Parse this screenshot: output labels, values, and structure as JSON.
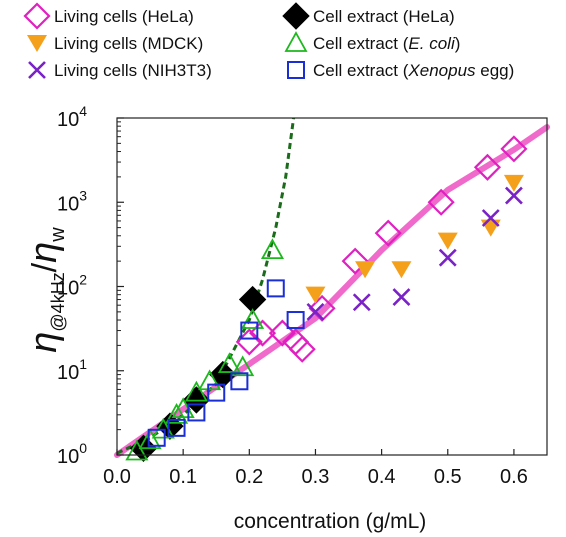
{
  "chart_data": {
    "type": "scatter",
    "xlabel": "concentration (g/mL)",
    "ylabel": "η@4kHz/ηw",
    "ylabel_parts": {
      "eta": "η",
      "sub": "@4kHz",
      "slash": "/",
      "w": "w"
    },
    "x_scale": "linear",
    "y_scale": "log",
    "xlim": [
      0.0,
      0.65
    ],
    "ylim": [
      1,
      10000
    ],
    "x_ticks": [
      {
        "value": 0.0,
        "label": "0.0"
      },
      {
        "value": 0.1,
        "label": "0.1"
      },
      {
        "value": 0.2,
        "label": "0.2"
      },
      {
        "value": 0.3,
        "label": "0.3"
      },
      {
        "value": 0.4,
        "label": "0.4"
      },
      {
        "value": 0.5,
        "label": "0.5"
      },
      {
        "value": 0.6,
        "label": "0.6"
      }
    ],
    "y_ticks": [
      {
        "value": 1,
        "base": "10",
        "exp": "0"
      },
      {
        "value": 10,
        "base": "10",
        "exp": "1"
      },
      {
        "value": 100,
        "base": "10",
        "exp": "2"
      },
      {
        "value": 1000,
        "base": "10",
        "exp": "3"
      },
      {
        "value": 10000,
        "base": "10",
        "exp": "4"
      }
    ],
    "grid": false,
    "legend_position": "top",
    "series": [
      {
        "name": "Living cells (HeLa)",
        "marker": "diamond-open",
        "color": "#e020c0",
        "legend_parts": [
          "Living cells (HeLa)"
        ],
        "points": [
          [
            0.2,
            22
          ],
          [
            0.22,
            28
          ],
          [
            0.25,
            28
          ],
          [
            0.27,
            22
          ],
          [
            0.28,
            18
          ],
          [
            0.31,
            55
          ],
          [
            0.36,
            200
          ],
          [
            0.41,
            430
          ],
          [
            0.49,
            1000
          ],
          [
            0.56,
            2600
          ],
          [
            0.6,
            4300
          ]
        ]
      },
      {
        "name": "Living cells (MDCK)",
        "marker": "triangle-down",
        "color": "#f5a01a",
        "legend_parts": [
          "Living cells (MDCK)"
        ],
        "points": [
          [
            0.3,
            80
          ],
          [
            0.375,
            160
          ],
          [
            0.43,
            160
          ],
          [
            0.5,
            350
          ],
          [
            0.565,
            500
          ],
          [
            0.6,
            1700
          ]
        ]
      },
      {
        "name": "Living cells (NIH3T3)",
        "marker": "x",
        "color": "#7a22c8",
        "legend_parts": [
          "Living cells (NIH3T3)"
        ],
        "points": [
          [
            0.3,
            50
          ],
          [
            0.37,
            65
          ],
          [
            0.43,
            75
          ],
          [
            0.5,
            220
          ],
          [
            0.565,
            650
          ],
          [
            0.6,
            1200
          ]
        ]
      },
      {
        "name": "Cell extract (HeLa)",
        "marker": "diamond-filled",
        "color": "#000000",
        "legend_parts": [
          "Cell extract (HeLa)"
        ],
        "points": [
          [
            0.04,
            1.2
          ],
          [
            0.08,
            2.2
          ],
          [
            0.12,
            4.5
          ],
          [
            0.16,
            9
          ],
          [
            0.205,
            70
          ]
        ]
      },
      {
        "name": "Cell extract (E. coli)",
        "marker": "triangle-up-open",
        "color": "#1db81d",
        "legend_parts": [
          "Cell extract (",
          "E. coli",
          ")"
        ],
        "points": [
          [
            0.03,
            1.1
          ],
          [
            0.05,
            1.5
          ],
          [
            0.07,
            2.0
          ],
          [
            0.09,
            3.0
          ],
          [
            0.1,
            3.5
          ],
          [
            0.12,
            5.5
          ],
          [
            0.14,
            7.5
          ],
          [
            0.17,
            12
          ],
          [
            0.19,
            11
          ],
          [
            0.205,
            40
          ],
          [
            0.235,
            270
          ]
        ]
      },
      {
        "name": "Cell extract (Xenopus egg)",
        "marker": "square-open",
        "color": "#1a2ed6",
        "legend_parts": [
          "Cell extract (",
          "Xenopus",
          " egg)"
        ],
        "points": [
          [
            0.06,
            1.6
          ],
          [
            0.09,
            2.1
          ],
          [
            0.12,
            3.2
          ],
          [
            0.15,
            5.5
          ],
          [
            0.185,
            7.5
          ],
          [
            0.2,
            30
          ],
          [
            0.24,
            95
          ],
          [
            0.27,
            40
          ]
        ]
      }
    ],
    "fit_lines": [
      {
        "style": "solid",
        "color": "#f06acb",
        "points": [
          [
            0.0,
            1.0
          ],
          [
            0.1,
            3.5
          ],
          [
            0.2,
            12
          ],
          [
            0.3,
            42
          ],
          [
            0.4,
            270
          ],
          [
            0.5,
            1400
          ],
          [
            0.6,
            4200
          ],
          [
            0.65,
            7800
          ]
        ]
      },
      {
        "style": "dashed",
        "color": "#1a6b1a",
        "points": [
          [
            0.0,
            1.05
          ],
          [
            0.05,
            1.6
          ],
          [
            0.1,
            3.0
          ],
          [
            0.15,
            7.0
          ],
          [
            0.2,
            40
          ],
          [
            0.22,
            120
          ],
          [
            0.24,
            500
          ],
          [
            0.255,
            2000
          ],
          [
            0.267,
            10000
          ]
        ]
      }
    ]
  }
}
